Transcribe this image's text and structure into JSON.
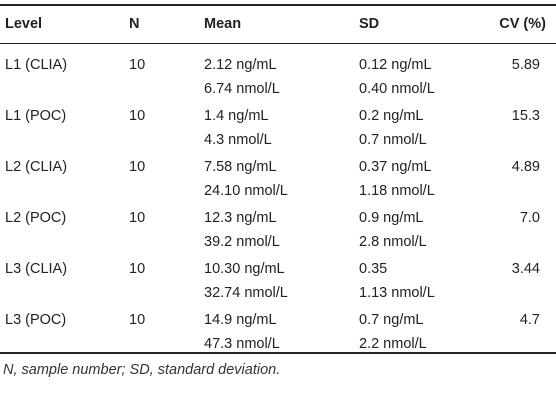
{
  "headers": {
    "level": "Level",
    "n": "N",
    "mean": "Mean",
    "sd": "SD",
    "cv": "CV (%)"
  },
  "rows": [
    {
      "level": "L1 (CLIA)",
      "n": "10",
      "mean1": "2.12 ng/mL",
      "mean2": "6.74 nmol/L",
      "sd1": "0.12 ng/mL",
      "sd2": "0.40 nmol/L",
      "cv": "5.89"
    },
    {
      "level": "L1 (POC)",
      "n": "10",
      "mean1": "1.4 ng/mL",
      "mean2": "4.3 nmol/L",
      "sd1": "0.2 ng/mL",
      "sd2": "0.7 nmol/L",
      "cv": "15.3"
    },
    {
      "level": "L2 (CLIA)",
      "n": "10",
      "mean1": "7.58 ng/mL",
      "mean2": "24.10 nmol/L",
      "sd1": "0.37 ng/mL",
      "sd2": "1.18 nmol/L",
      "cv": "4.89"
    },
    {
      "level": "L2 (POC)",
      "n": "10",
      "mean1": "12.3 ng/mL",
      "mean2": "39.2 nmol/L",
      "sd1": "0.9 ng/mL",
      "sd2": "2.8 nmol/L",
      "cv": "7.0"
    },
    {
      "level": "L3 (CLIA)",
      "n": "10",
      "mean1": "10.30 ng/mL",
      "mean2": "32.74 nmol/L",
      "sd1": "0.35",
      "sd2": "1.13 nmol/L",
      "cv": "3.44"
    },
    {
      "level": "L3 (POC)",
      "n": "10",
      "mean1": "14.9 ng/mL",
      "mean2": "47.3 nmol/L",
      "sd1": "0.7 ng/mL",
      "sd2": "2.2 nmol/L",
      "cv": "4.7"
    }
  ],
  "footnote": "N, sample number; SD, standard deviation."
}
